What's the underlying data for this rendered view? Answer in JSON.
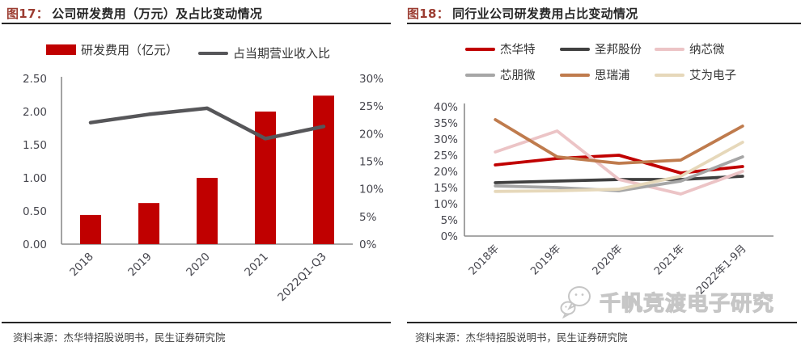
{
  "panels": [
    {
      "tag": "图17：",
      "title": "公司研发费用（万元）及占比变动情况",
      "source": "资料来源：杰华特招股说明书，民生证券研究院"
    },
    {
      "tag": "图18：",
      "title": "同行业公司研发费用占比变动情况",
      "source": "资料来源：杰华特招股说明书，民生证券研究院"
    }
  ],
  "watermark": {
    "text": "千帆竞渡电子研究",
    "icon": "chat-bubbles-icon"
  },
  "colors": {
    "accent_red": "#C00000",
    "title_red": "#9C3D32",
    "dark_line": "#565659",
    "axis_text": "#45454D",
    "axis_line": "#8C8C8C",
    "rule_black": "#262626",
    "watermark_gray": "#C6C6C6"
  },
  "chart_data": [
    {
      "type": "bar",
      "subtype": "bar + line combo, dual axis",
      "title": "图17：公司研发费用（万元）及占比变动情况",
      "categories": [
        "2018",
        "2019",
        "2020",
        "2021",
        "2022Q1-Q3"
      ],
      "series": [
        {
          "name": "研发费用（亿元）",
          "kind": "bar",
          "axis": "left",
          "color": "#C00000",
          "values": [
            0.44,
            0.62,
            1.0,
            2.0,
            2.24
          ]
        },
        {
          "name": "占当期营业收入比",
          "kind": "line",
          "axis": "right",
          "color": "#565659",
          "values": [
            22.0,
            23.5,
            24.6,
            19.1,
            21.3
          ]
        }
      ],
      "left_axis": {
        "min": 0,
        "max": 2.5,
        "ticks": [
          "0.00",
          "0.50",
          "1.00",
          "1.50",
          "2.00",
          "2.50"
        ]
      },
      "right_axis": {
        "min": 0,
        "max": 30,
        "unit": "%",
        "ticks": [
          "0%",
          "5%",
          "10%",
          "15%",
          "20%",
          "25%",
          "30%"
        ]
      },
      "grid": false,
      "legend_position": "top"
    },
    {
      "type": "line",
      "title": "图18：同行业公司研发费用占比变动情况",
      "categories": [
        "2018年",
        "2019年",
        "2020年",
        "2021年",
        "2022年1-9月"
      ],
      "series": [
        {
          "name": "杰华特",
          "color": "#C00000",
          "values": [
            22.0,
            24.0,
            25.0,
            19.5,
            21.5
          ]
        },
        {
          "name": "圣邦股份",
          "color": "#404040",
          "values": [
            16.5,
            17.0,
            17.5,
            17.5,
            18.5
          ]
        },
        {
          "name": "纳芯微",
          "color": "#ECC4C6",
          "values": [
            26.0,
            32.5,
            17.5,
            13.0,
            20.0
          ]
        },
        {
          "name": "芯朋微",
          "color": "#A6A6A6",
          "values": [
            15.5,
            15.0,
            14.0,
            17.0,
            24.5
          ]
        },
        {
          "name": "思瑞浦",
          "color": "#BF7B4D",
          "values": [
            36.0,
            24.5,
            22.5,
            23.5,
            34.0
          ]
        },
        {
          "name": "艾为电子",
          "color": "#E6D8BA",
          "values": [
            13.8,
            14.0,
            14.5,
            18.5,
            29.0
          ]
        }
      ],
      "y_axis": {
        "min": 0,
        "max": 40,
        "unit": "%",
        "ticks": [
          "0%",
          "5%",
          "10%",
          "15%",
          "20%",
          "25%",
          "30%",
          "35%",
          "40%"
        ]
      },
      "grid": false,
      "legend_position": "top"
    }
  ]
}
